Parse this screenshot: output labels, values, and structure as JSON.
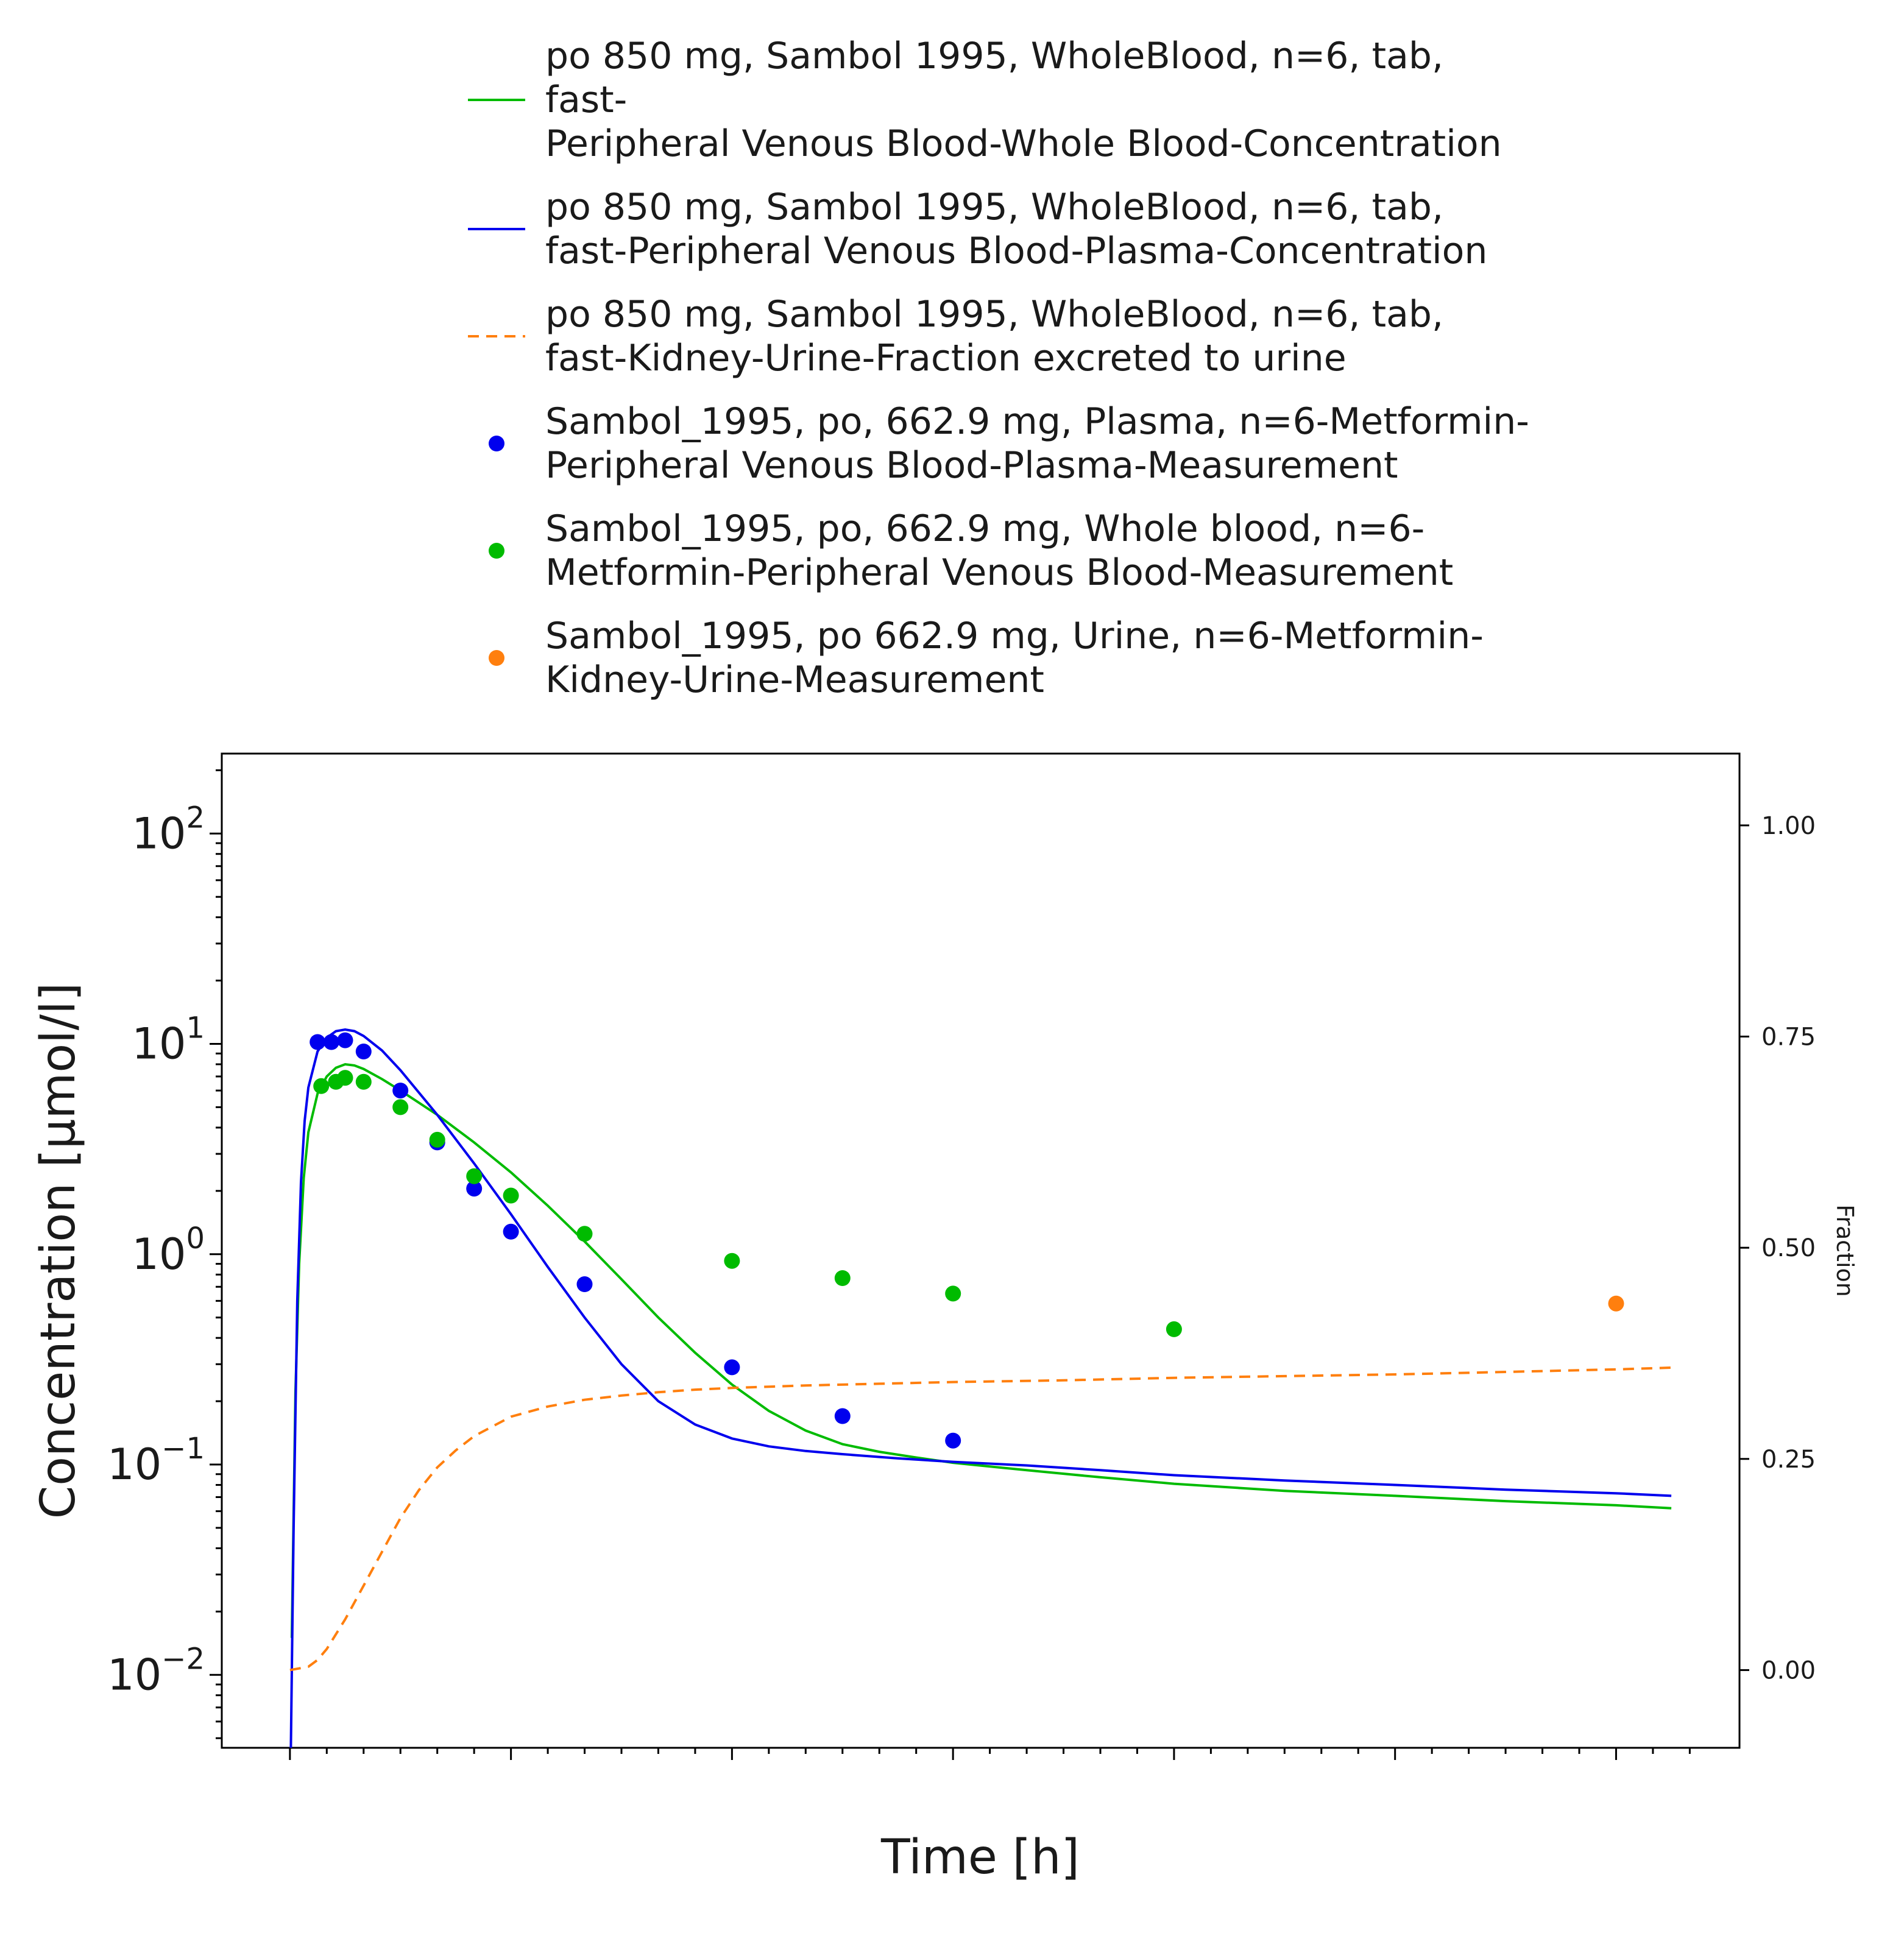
{
  "chart_data": {
    "type": "line",
    "title": "",
    "xlabel": "Time [h]",
    "ylabel": "Concentration [µmol/l]",
    "y2label": "Fraction",
    "xlim": [
      -3.7,
      78.7
    ],
    "ylim": [
      0.0045,
      240
    ],
    "yscale": "log",
    "y2lim": [
      -0.092,
      1.085
    ],
    "x_ticks": [
      0,
      12,
      24,
      36,
      48,
      60,
      72
    ],
    "y_ticks": [
      {
        "value": 0.01,
        "base": "10",
        "exp": "−2"
      },
      {
        "value": 0.1,
        "base": "10",
        "exp": "−1"
      },
      {
        "value": 1,
        "base": "10",
        "exp": "0"
      },
      {
        "value": 10,
        "base": "10",
        "exp": "1"
      },
      {
        "value": 100,
        "base": "10",
        "exp": "2"
      }
    ],
    "y2_ticks": [
      "0.00",
      "0.25",
      "0.50",
      "0.75",
      "1.00"
    ],
    "grid": false,
    "legend_position": "top",
    "legend": [
      {
        "kind": "line",
        "color": "#00bb00",
        "dash": "",
        "lines": [
          "po 850 mg, Sambol 1995, WholeBlood, n=6, tab,",
          "fast-",
          "Peripheral Venous Blood-Whole Blood-Concentration"
        ]
      },
      {
        "kind": "line",
        "color": "#0000ee",
        "dash": "",
        "lines": [
          "po 850 mg, Sambol 1995, WholeBlood, n=6, tab,",
          "fast-Peripheral Venous Blood-Plasma-Concentration"
        ]
      },
      {
        "kind": "line",
        "color": "#ff7f0e",
        "dash": "18,12",
        "lines": [
          "po 850 mg, Sambol 1995, WholeBlood, n=6, tab,",
          "fast-Kidney-Urine-Fraction excreted to urine"
        ]
      },
      {
        "kind": "marker",
        "color": "#0000ee",
        "lines": [
          "Sambol_1995, po, 662.9 mg, Plasma, n=6-Metformin-",
          "Peripheral Venous Blood-Plasma-Measurement"
        ]
      },
      {
        "kind": "marker",
        "color": "#00bb00",
        "lines": [
          "Sambol_1995, po, 662.9 mg, Whole blood, n=6-",
          "Metformin-Peripheral Venous Blood-Measurement"
        ]
      },
      {
        "kind": "marker",
        "color": "#ff7f0e",
        "lines": [
          "Sambol_1995, po 662.9 mg, Urine, n=6-Metformin-",
          "Kidney-Urine-Measurement"
        ]
      }
    ],
    "series": [
      {
        "name": "po 850 mg, Sambol 1995, WholeBlood, n=6, tab, fast-Peripheral Venous Blood-Whole Blood-Concentration",
        "kind": "line",
        "color": "#00bb00",
        "axis": "left",
        "x": [
          0.1,
          0.3,
          0.5,
          0.75,
          1.0,
          1.5,
          2.0,
          2.5,
          3.0,
          3.5,
          4.0,
          5.0,
          6.0,
          8.0,
          10.0,
          12.0,
          14.0,
          16.0,
          18.0,
          20.0,
          22.0,
          24.0,
          26.0,
          28.0,
          30.0,
          32.0,
          34.0,
          36.0,
          40.0,
          44.0,
          48.0,
          54.0,
          60.0,
          66.0,
          72.0,
          75.0
        ],
        "y": [
          0.015,
          0.22,
          0.9,
          2.3,
          3.8,
          5.8,
          7.0,
          7.7,
          8.0,
          7.9,
          7.6,
          6.8,
          6.0,
          4.6,
          3.4,
          2.45,
          1.7,
          1.15,
          0.76,
          0.5,
          0.34,
          0.24,
          0.18,
          0.145,
          0.125,
          0.115,
          0.108,
          0.102,
          0.094,
          0.087,
          0.081,
          0.075,
          0.071,
          0.067,
          0.064,
          0.062
        ]
      },
      {
        "name": "po 850 mg, Sambol 1995, WholeBlood, n=6, tab, fast-Peripheral Venous Blood-Plasma-Concentration",
        "kind": "line",
        "color": "#0000ee",
        "axis": "left",
        "x": [
          0.05,
          0.2,
          0.4,
          0.6,
          0.8,
          1.0,
          1.5,
          2.0,
          2.5,
          3.0,
          3.5,
          4.0,
          5.0,
          6.0,
          8.0,
          10.0,
          12.0,
          14.0,
          16.0,
          18.0,
          20.0,
          22.0,
          24.0,
          26.0,
          28.0,
          30.0,
          33.0,
          36.0,
          40.0,
          44.0,
          48.0,
          54.0,
          60.0,
          66.0,
          72.0,
          75.0
        ],
        "y": [
          0.0045,
          0.05,
          0.6,
          2.2,
          4.3,
          6.2,
          9.2,
          10.7,
          11.5,
          11.7,
          11.5,
          10.9,
          9.3,
          7.5,
          4.6,
          2.7,
          1.55,
          0.87,
          0.5,
          0.3,
          0.2,
          0.155,
          0.133,
          0.122,
          0.116,
          0.112,
          0.107,
          0.103,
          0.099,
          0.094,
          0.089,
          0.084,
          0.08,
          0.076,
          0.073,
          0.071
        ]
      },
      {
        "name": "po 850 mg, Sambol 1995, WholeBlood, n=6, tab, fast-Kidney-Urine-Fraction excreted to urine",
        "kind": "line",
        "dash": "18,12",
        "color": "#ff7f0e",
        "axis": "right",
        "x": [
          0,
          1,
          1.5,
          2,
          3,
          4,
          5,
          6,
          7,
          8,
          9,
          10,
          12,
          14,
          16,
          18,
          20,
          22,
          24,
          28,
          32,
          36,
          42,
          48,
          54,
          60,
          66,
          72,
          75
        ],
        "y": [
          0.0,
          0.004,
          0.012,
          0.025,
          0.06,
          0.1,
          0.14,
          0.18,
          0.213,
          0.24,
          0.26,
          0.277,
          0.3,
          0.312,
          0.32,
          0.325,
          0.329,
          0.332,
          0.334,
          0.337,
          0.339,
          0.341,
          0.343,
          0.346,
          0.348,
          0.35,
          0.353,
          0.356,
          0.358
        ]
      },
      {
        "name": "Sambol_1995, po, 662.9 mg, Plasma, n=6-Metformin-Peripheral Venous Blood-Plasma-Measurement",
        "kind": "scatter",
        "color": "#0000ee",
        "axis": "left",
        "x": [
          1.5,
          2.25,
          3.0,
          4.0,
          6.0,
          8.0,
          10.0,
          12.0,
          16.0,
          24.0,
          30.0,
          36.0
        ],
        "y": [
          10.2,
          10.2,
          10.4,
          9.2,
          6.0,
          3.4,
          2.05,
          1.28,
          0.72,
          0.29,
          0.17,
          0.13
        ]
      },
      {
        "name": "Sambol_1995, po, 662.9 mg, Whole blood, n=6-Metformin-Peripheral Venous Blood-Measurement",
        "kind": "scatter",
        "color": "#00bb00",
        "axis": "left",
        "x": [
          1.7,
          2.5,
          3.0,
          4.0,
          6.0,
          8.0,
          10.0,
          12.0,
          16.0,
          24.0,
          30.0,
          36.0,
          48.0
        ],
        "y": [
          6.3,
          6.6,
          6.9,
          6.6,
          5.0,
          3.5,
          2.35,
          1.9,
          1.25,
          0.93,
          0.77,
          0.65,
          0.44
        ]
      },
      {
        "name": "Sambol_1995, po 662.9 mg, Urine, n=6-Metformin-Kidney-Urine-Measurement",
        "kind": "scatter",
        "color": "#ff7f0e",
        "axis": "right",
        "x": [
          72.0
        ],
        "y": [
          0.434
        ]
      }
    ]
  }
}
